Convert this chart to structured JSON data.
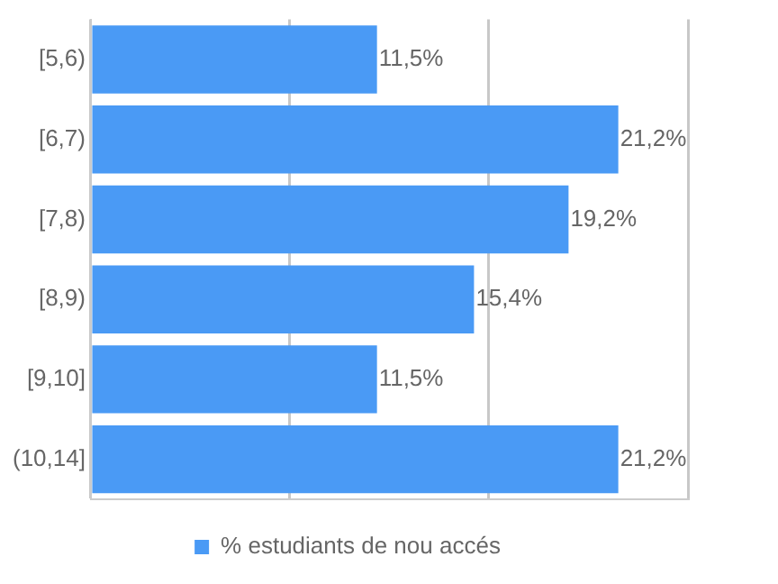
{
  "chart_data": {
    "type": "bar",
    "orientation": "horizontal",
    "categories": [
      "[5,6)",
      "[6,7)",
      "[7,8)",
      "[8,9)",
      "[9,10]",
      "(10,14]"
    ],
    "series": [
      {
        "name": "% estudiants de nou accés",
        "color": "#4a9af5",
        "values": [
          11.5,
          21.2,
          19.2,
          15.4,
          11.5,
          21.2
        ],
        "value_labels": [
          "11,5%",
          "21,2%",
          "19,2%",
          "15,4%",
          "11,5%",
          "21,2%"
        ]
      }
    ],
    "xlim": [
      0,
      24
    ],
    "xticks": [
      {
        "value": 0,
        "label": null
      },
      {
        "value": 8,
        "label": null
      },
      {
        "value": 16,
        "label": null
      },
      {
        "value": 24,
        "label": null
      }
    ],
    "tick_labels": "y",
    "grid": "x",
    "legend": "bottom"
  }
}
